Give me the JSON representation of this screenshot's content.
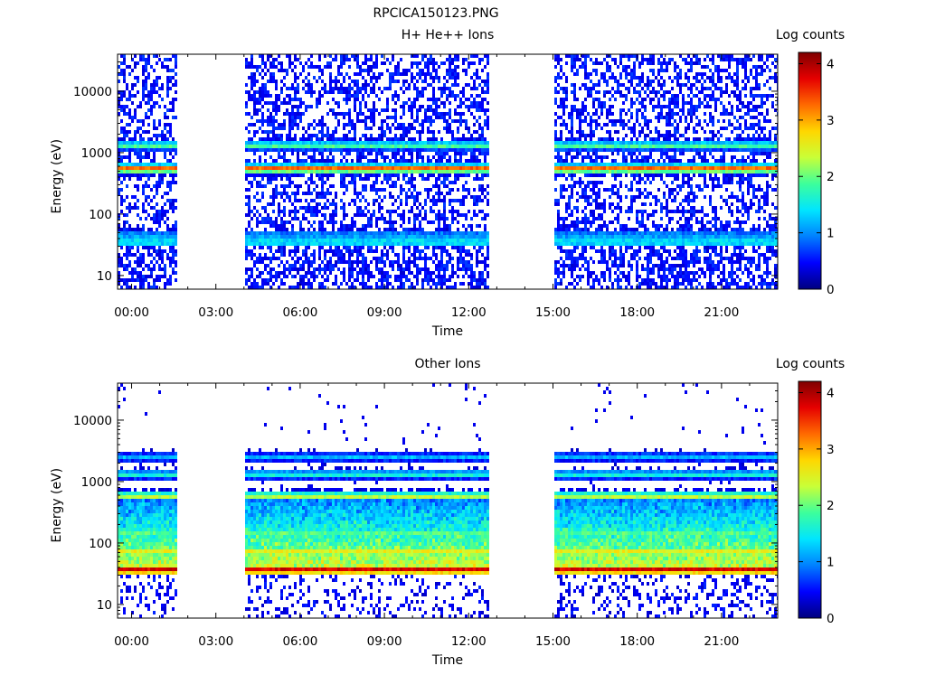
{
  "figure_title": "RPCICA150123.PNG",
  "colors": {
    "colormap": [
      "#00007f",
      "#0000ff",
      "#0080ff",
      "#00e5ff",
      "#3cff9c",
      "#c8ff38",
      "#ffd700",
      "#ff6a00",
      "#e60000",
      "#7f0000"
    ],
    "axes": "#000000",
    "background": "#ffffff"
  },
  "chart_data": [
    {
      "type": "heatmap",
      "title": "H+ He++ Ions",
      "xlabel": "Time",
      "ylabel": "Energy (eV)",
      "x_ticks": [
        "00:00",
        "03:00",
        "06:00",
        "09:00",
        "12:00",
        "15:00",
        "18:00",
        "21:00"
      ],
      "x_tick_hours": [
        0,
        3,
        6,
        9,
        12,
        15,
        18,
        21
      ],
      "xlim_hours": [
        -0.5,
        23.0
      ],
      "y_scale": "log",
      "ylim": [
        6,
        40000
      ],
      "y_ticks": [
        "10",
        "100",
        "1000",
        "10000"
      ],
      "y_tick_values": [
        10,
        100,
        1000,
        10000
      ],
      "colorbar": {
        "label": "Log counts",
        "ticks": [
          "0",
          "1",
          "2",
          "3",
          "4"
        ],
        "tick_values": [
          0,
          1,
          2,
          3,
          4
        ],
        "range": [
          0,
          4.2
        ]
      },
      "data_gaps_hours": [
        [
          1.6,
          4.0
        ],
        [
          12.7,
          15.0
        ]
      ],
      "bands": [
        {
          "energy_eV": 35,
          "log_counts": 1.6
        },
        {
          "energy_eV": 45,
          "log_counts": 1.2
        },
        {
          "energy_eV": 550,
          "log_counts": 3.3
        },
        {
          "energy_eV": 1300,
          "log_counts": 1.9
        }
      ]
    },
    {
      "type": "heatmap",
      "title": "Other Ions",
      "xlabel": "Time",
      "ylabel": "Energy (eV)",
      "x_ticks": [
        "00:00",
        "03:00",
        "06:00",
        "09:00",
        "12:00",
        "15:00",
        "18:00",
        "21:00"
      ],
      "x_tick_hours": [
        0,
        3,
        6,
        9,
        12,
        15,
        18,
        21
      ],
      "xlim_hours": [
        -0.5,
        23.0
      ],
      "y_scale": "log",
      "ylim": [
        6,
        40000
      ],
      "y_ticks": [
        "10",
        "100",
        "1000",
        "10000"
      ],
      "y_tick_values": [
        10,
        100,
        1000,
        10000
      ],
      "colorbar": {
        "label": "Log counts",
        "ticks": [
          "0",
          "1",
          "2",
          "3",
          "4"
        ],
        "tick_values": [
          0,
          1,
          2,
          3,
          4
        ],
        "range": [
          0,
          4.2
        ]
      },
      "data_gaps_hours": [
        [
          1.6,
          4.0
        ],
        [
          12.7,
          15.0
        ]
      ],
      "bands": [
        {
          "energy_eV": 36,
          "log_counts": 4.0
        },
        {
          "energy_eV": 70,
          "log_counts": 2.8
        },
        {
          "energy_eV": 150,
          "log_counts": 2.0
        },
        {
          "energy_eV": 580,
          "log_counts": 2.4
        },
        {
          "energy_eV": 1300,
          "log_counts": 1.6
        },
        {
          "energy_eV": 2500,
          "log_counts": 1.2
        }
      ]
    }
  ]
}
